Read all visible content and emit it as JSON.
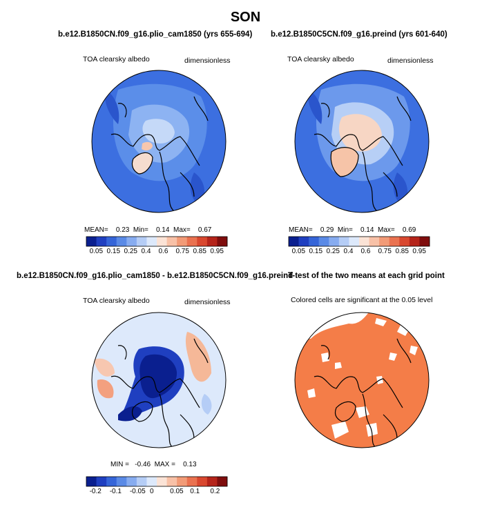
{
  "figure_title": "SON",
  "panels": [
    {
      "title": "b.e12.B1850CN.f09_g16.plio_cam1850 (yrs 655-694)",
      "left_label": "TOA clearsky albedo",
      "right_label": "dimensionless",
      "mean_label": "MEAN=",
      "mean": "0.23",
      "min_label": "Min=",
      "min": "0.14",
      "max_label": "Max=",
      "max": "0.67",
      "colorbar_ticks": [
        "0.05",
        "0.15",
        "0.25",
        "0.4",
        "0.6",
        "0.75",
        "0.85",
        "0.95"
      ]
    },
    {
      "title": "b.e12.B1850C5CN.f09_g16.preind (yrs 601-640)",
      "left_label": "TOA clearsky albedo",
      "right_label": "dimensionless",
      "mean_label": "MEAN=",
      "mean": "0.29",
      "min_label": "Min=",
      "min": "0.14",
      "max_label": "Max=",
      "max": "0.69",
      "colorbar_ticks": [
        "0.05",
        "0.15",
        "0.25",
        "0.4",
        "0.6",
        "0.75",
        "0.85",
        "0.95"
      ]
    },
    {
      "title": "b.e12.B1850CN.f09_g16.plio_cam1850 - b.e12.B1850C5CN.f09_g16.preind",
      "left_label": "TOA clearsky albedo",
      "right_label": "dimensionless",
      "min_label": "MIN =",
      "min": "-0.46",
      "max_label": "MAX =",
      "max": "0.13",
      "colorbar_ticks": [
        "-0.2",
        "-0.1",
        "-0.05",
        "0",
        "0.05",
        "0.1",
        "0.2"
      ]
    },
    {
      "title": "T-test of the two means at each grid point",
      "left_label": "Colored cells are significant at the 0.05 level"
    }
  ],
  "colors": {
    "abs_scale": [
      "#0a1f8f",
      "#1f3fc0",
      "#3565d8",
      "#5a8ae6",
      "#87acf0",
      "#b5cdf6",
      "#dde9fb",
      "#fbe3d6",
      "#f8c1a7",
      "#f29b77",
      "#ea7250",
      "#d9482f",
      "#b5241a",
      "#7f0d0d"
    ],
    "diff_scale": [
      "#0a1f8f",
      "#1f3fc0",
      "#3565d8",
      "#5a8ae6",
      "#87acf0",
      "#b5cdf6",
      "#dde9fb",
      "#fbe3d6",
      "#f8c1a7",
      "#f29b77",
      "#ea7250",
      "#d9482f",
      "#b5241a",
      "#7f0d0d"
    ],
    "significance": "#f47d48"
  }
}
